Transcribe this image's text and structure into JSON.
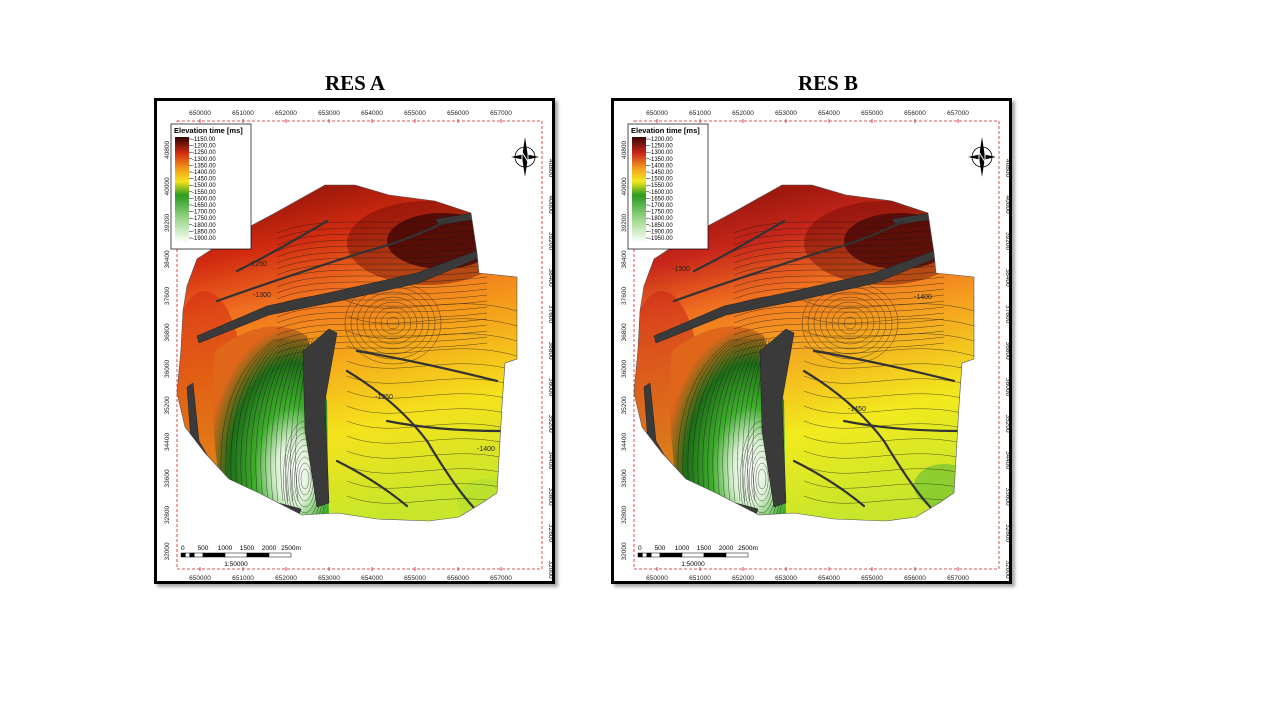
{
  "panels": [
    {
      "title": "RES A",
      "legend_title": "Elevation time [ms]",
      "legend_values": [
        "-1150.00",
        "-1200.00",
        "-1250.00",
        "-1300.00",
        "-1350.00",
        "-1400.00",
        "-1450.00",
        "-1500.00",
        "-1550.00",
        "-1600.00",
        "-1650.00",
        "-1700.00",
        "-1750.00",
        "-1800.00",
        "-1850.00",
        "-1900.00"
      ],
      "contour_labels": [
        "-1250",
        "-1300",
        "-1350",
        "-1400"
      ],
      "x_ticks": [
        "650000",
        "651000",
        "652000",
        "653000",
        "654000",
        "655000",
        "656000",
        "657000"
      ],
      "y_ticks": [
        "40800",
        "40000",
        "39200",
        "38400",
        "37600",
        "36800",
        "36000",
        "35200",
        "34400",
        "33600",
        "32800",
        "32000"
      ],
      "scale_labels": [
        "0",
        "500",
        "1000",
        "1500",
        "2000",
        "2500m"
      ],
      "scale_ratio": "1:50000",
      "colors": {
        "high": "#2a0505",
        "red": "#d22b10",
        "orange": "#f59a1a",
        "yellow": "#f5e21c",
        "green": "#2c9b20",
        "light": "#ffffff"
      }
    },
    {
      "title": "RES B",
      "legend_title": "Elevation time [ms]",
      "legend_values": [
        "-1200.00",
        "-1250.00",
        "-1300.00",
        "-1350.00",
        "-1400.00",
        "-1450.00",
        "-1500.00",
        "-1550.00",
        "-1600.00",
        "-1650.00",
        "-1700.00",
        "-1750.00",
        "-1800.00",
        "-1850.00",
        "-1900.00",
        "-1950.00"
      ],
      "contour_labels": [
        "-1300",
        "-1400",
        "-1450"
      ],
      "x_ticks": [
        "650000",
        "651000",
        "652000",
        "653000",
        "654000",
        "655000",
        "656000",
        "657000"
      ],
      "y_ticks": [
        "40800",
        "40000",
        "39200",
        "38400",
        "37600",
        "36800",
        "36000",
        "35200",
        "34400",
        "33600",
        "32800",
        "32000"
      ],
      "scale_labels": [
        "0",
        "500",
        "1000",
        "1500",
        "2000",
        "2500m"
      ],
      "scale_ratio": "1:50000",
      "colors": {
        "high": "#3a0707",
        "red": "#c8261a",
        "orange": "#f5a020",
        "yellow": "#f2ea1e",
        "green": "#2c9b20",
        "light": "#ffffff"
      }
    }
  ]
}
